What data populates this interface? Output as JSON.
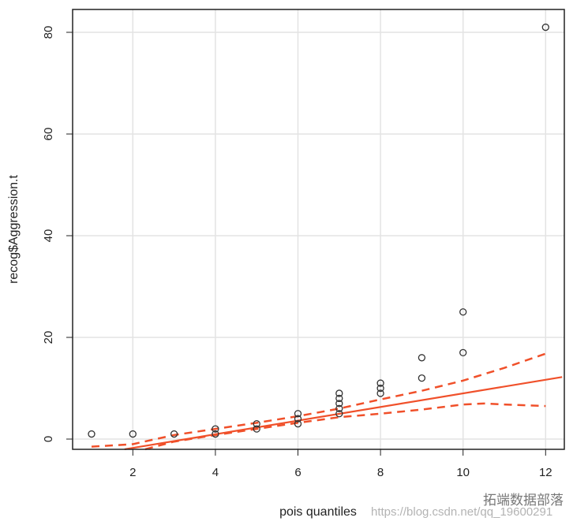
{
  "chart_data": {
    "type": "scatter",
    "title": "",
    "xlabel": "pois quantiles",
    "ylabel": "recog$Aggression.t",
    "xlim": [
      0.5,
      12.4
    ],
    "ylim": [
      -2,
      84
    ],
    "xticks": [
      2,
      4,
      6,
      8,
      10,
      12
    ],
    "yticks": [
      0,
      20,
      40,
      60,
      80
    ],
    "grid": true,
    "points": {
      "x": [
        1,
        2,
        3,
        4,
        4,
        5,
        5,
        6,
        6,
        6,
        7,
        7,
        7,
        7,
        7,
        8,
        8,
        8,
        9,
        9,
        10,
        10,
        12
      ],
      "y": [
        1,
        1,
        1,
        1,
        2,
        2,
        3,
        3,
        4,
        5,
        5,
        6,
        7,
        8,
        9,
        9,
        10,
        11,
        12,
        16,
        17,
        25,
        81
      ]
    },
    "reference_line": {
      "x": [
        1.8,
        12.4
      ],
      "y": [
        -2,
        12.2
      ],
      "color": "#f0502a"
    },
    "upper_band": {
      "x": [
        1,
        2,
        3,
        4,
        5,
        6,
        7,
        8,
        9,
        10,
        11,
        12
      ],
      "y": [
        -1.5,
        -1,
        0.8,
        2,
        3.2,
        4.5,
        6,
        7.8,
        9.5,
        11.5,
        14,
        16.8
      ]
    },
    "lower_band": {
      "x": [
        2.3,
        3,
        4,
        5,
        6,
        7,
        8,
        9,
        10,
        10.5,
        11,
        12
      ],
      "y": [
        -2,
        -0.5,
        0.8,
        2,
        3.2,
        4.3,
        5,
        5.8,
        6.8,
        7,
        6.8,
        6.5
      ]
    }
  },
  "watermark": {
    "brand": "拓端数据部落",
    "url": "https://blog.csdn.net/qq_19600291"
  }
}
